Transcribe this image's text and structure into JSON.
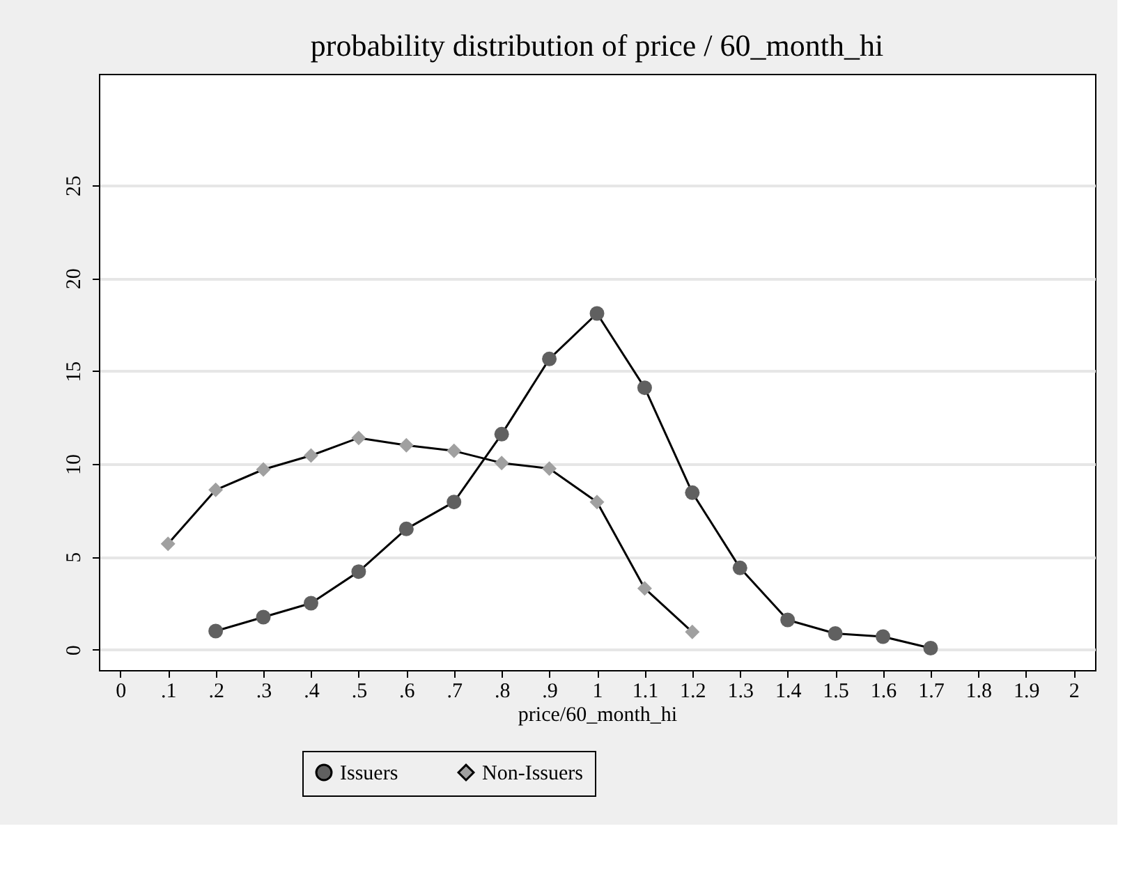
{
  "chart_data": {
    "type": "line",
    "title": "probability distribution of price / 60_month_hi",
    "xlabel": "price/60_month_hi",
    "xlim": [
      -0.045,
      2.045
    ],
    "ylim": [
      -1.1,
      31
    ],
    "xticks": [
      0,
      {
        "value": 0.1,
        "label": ".1"
      },
      {
        "value": 0.2,
        "label": ".2"
      },
      {
        "value": 0.3,
        "label": ".3"
      },
      {
        "value": 0.4,
        "label": ".4"
      },
      {
        "value": 0.5,
        "label": ".5"
      },
      {
        "value": 0.6,
        "label": ".6"
      },
      {
        "value": 0.7,
        "label": ".7"
      },
      {
        "value": 0.8,
        "label": ".8"
      },
      {
        "value": 0.9,
        "label": ".9"
      },
      1,
      1.1,
      1.2,
      1.3,
      1.4,
      1.5,
      1.6,
      1.7,
      1.8,
      1.9,
      2
    ],
    "yticks": [
      0,
      5,
      10,
      15,
      20,
      25
    ],
    "grid": "y",
    "legend": "bottom",
    "line_style": "solid",
    "series": [
      {
        "name": "Issuers",
        "color": "#606060",
        "marker": "circle",
        "x": [
          0.2,
          0.3,
          0.4,
          0.5,
          0.6,
          0.7,
          0.8,
          0.9,
          1,
          1.1,
          1.2,
          1.3,
          1.4,
          1.5,
          1.6,
          1.7
        ],
        "values": [
          1.0,
          1.75,
          2.5,
          4.2,
          6.5,
          7.95,
          11.6,
          15.65,
          18.1,
          14.1,
          8.45,
          4.4,
          1.6,
          0.87,
          0.7,
          0.08
        ]
      },
      {
        "name": "Non-Issuers",
        "color": "#a0a0a0",
        "marker": "diamond",
        "x": [
          0.1,
          0.2,
          0.3,
          0.4,
          0.5,
          0.6,
          0.7,
          0.8,
          0.9,
          1,
          1.1,
          1.2
        ],
        "values": [
          5.7,
          8.6,
          9.7,
          10.45,
          11.4,
          11.0,
          10.7,
          10.05,
          9.75,
          7.95,
          3.3,
          0.95
        ]
      }
    ]
  }
}
